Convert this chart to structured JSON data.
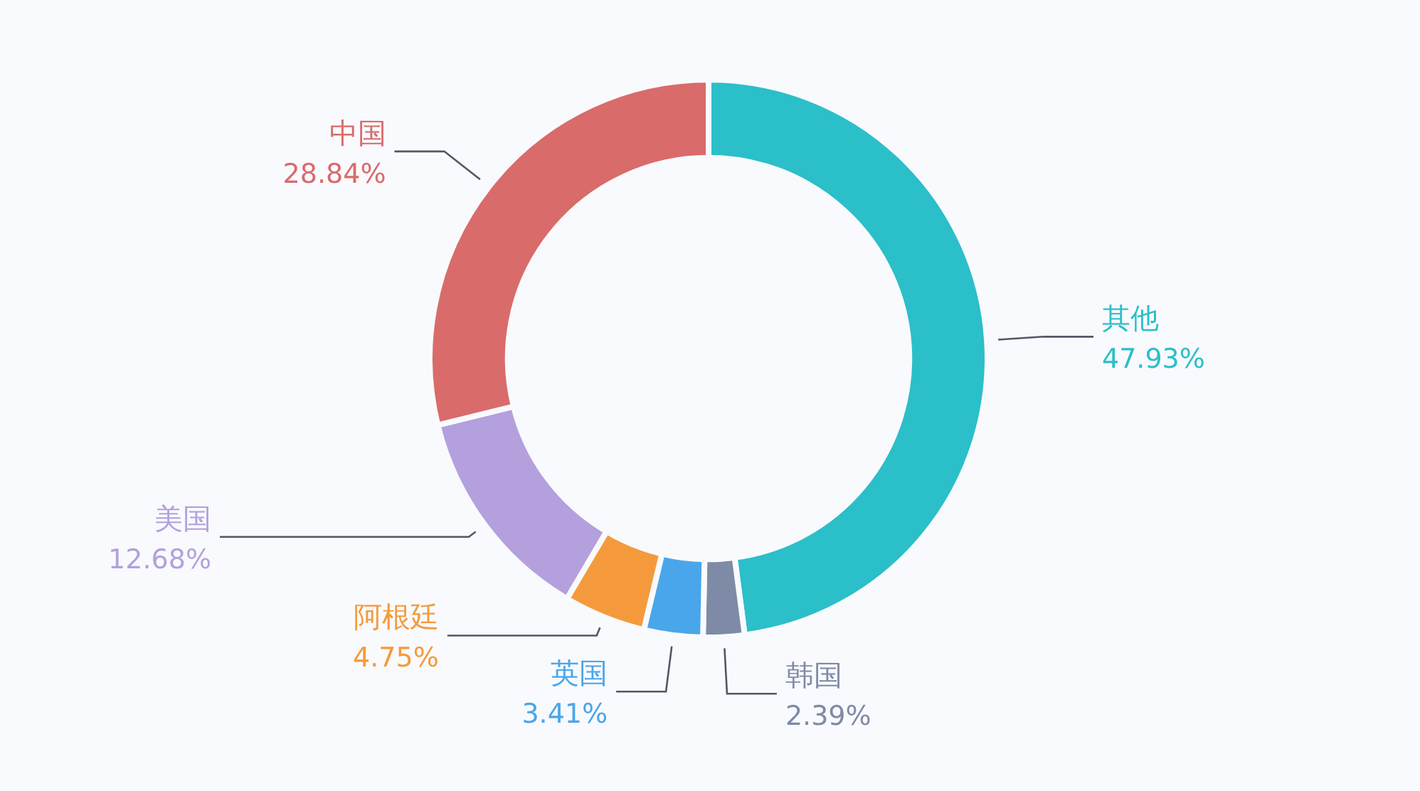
{
  "chart_data": {
    "type": "donut",
    "categories": [
      "其他",
      "韩国",
      "英国",
      "阿根廷",
      "美国",
      "中国"
    ],
    "values": [
      47.93,
      2.39,
      3.41,
      4.75,
      12.68,
      28.84
    ],
    "colors": [
      "#2bbfc9",
      "#7f8aa6",
      "#4aa6ea",
      "#f59a3c",
      "#b3a0dd",
      "#d96b6b"
    ],
    "data_labels": true,
    "value_labels": [
      "47.93%",
      "2.39%",
      "3.41%",
      "4.75%",
      "12.68%",
      "28.84%"
    ]
  }
}
